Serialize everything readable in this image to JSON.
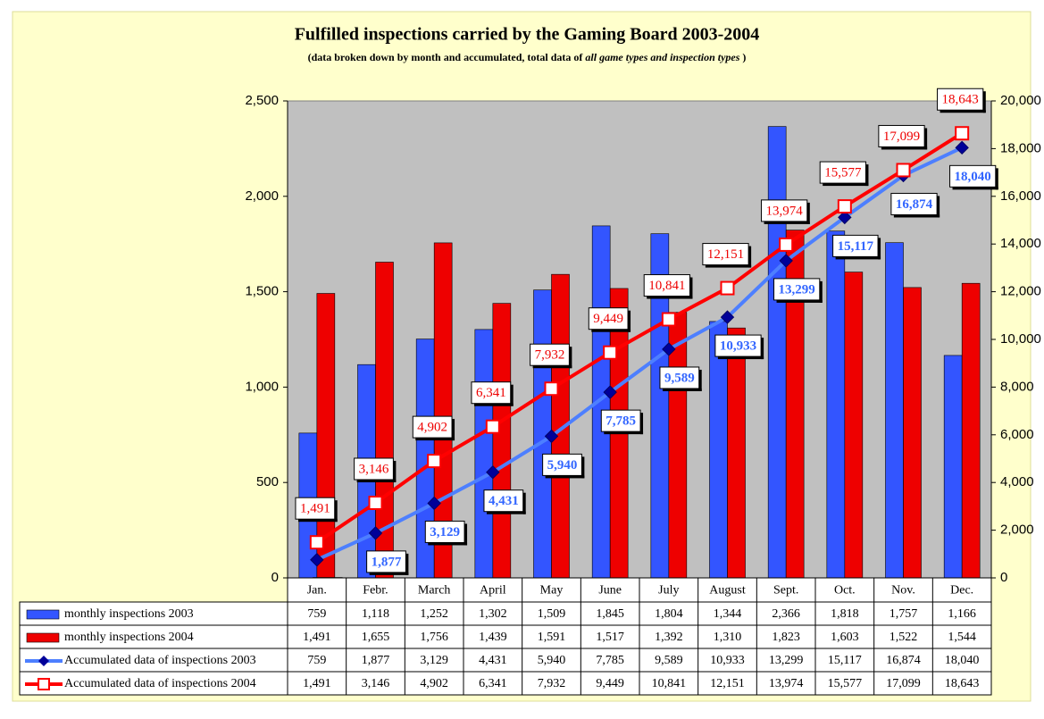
{
  "chart_data": {
    "type": "bar",
    "title": "Fulfilled inspections carried by the Gaming Board 2003-2004",
    "subtitle_parts": [
      "(data broken down by month and accumulated, total data of ",
      "all game types and inspection types",
      " )"
    ],
    "categories": [
      "Jan.",
      "Febr.",
      "March",
      "April",
      "May",
      "June",
      "July",
      "August",
      "Sept.",
      "Oct.",
      "Nov.",
      "Dec."
    ],
    "ylim": [
      0,
      2500
    ],
    "yticks": [
      0,
      500,
      {
        "value": 1000,
        "label": "1,000"
      },
      {
        "value": 1500,
        "label": "1,500"
      },
      {
        "value": 2000,
        "label": "2,000"
      },
      {
        "value": 2500,
        "label": "2,500"
      }
    ],
    "y2lim": [
      0,
      20000
    ],
    "y2ticks": [
      0,
      {
        "value": 2000,
        "label": "2,000"
      },
      {
        "value": 4000,
        "label": "4,000"
      },
      {
        "value": 6000,
        "label": "6,000"
      },
      {
        "value": 8000,
        "label": "8,000"
      },
      {
        "value": 10000,
        "label": "10,000"
      },
      {
        "value": 12000,
        "label": "12,000"
      },
      {
        "value": 14000,
        "label": "14,000"
      },
      {
        "value": 16000,
        "label": "16,000"
      },
      {
        "value": 18000,
        "label": "18,000"
      },
      {
        "value": 20000,
        "label": "20,000"
      }
    ],
    "series": [
      {
        "name": "monthly inspections 2003",
        "type": "bar",
        "color": "#3355ff",
        "values": [
          759,
          1118,
          1252,
          1302,
          1509,
          1845,
          1804,
          1344,
          2366,
          1818,
          1757,
          1166
        ],
        "value_labels": [
          "759",
          "1,118",
          "1,252",
          "1,302",
          "1,509",
          "1,845",
          "1,804",
          "1,344",
          "2,366",
          "1,818",
          "1,757",
          "1,166"
        ]
      },
      {
        "name": "monthly inspections 2004",
        "type": "bar",
        "color": "#ee0000",
        "values": [
          1491,
          1655,
          1756,
          1439,
          1591,
          1517,
          1392,
          1310,
          1823,
          1603,
          1522,
          1544
        ],
        "value_labels": [
          "1,491",
          "1,655",
          "1,756",
          "1,439",
          "1,591",
          "1,517",
          "1,392",
          "1,310",
          "1,823",
          "1,603",
          "1,522",
          "1,544"
        ]
      },
      {
        "name": "Accumulated data of inspections 2003",
        "type": "line",
        "axis": "y2",
        "color": "#4d7fff",
        "values": [
          759,
          1877,
          3129,
          4431,
          5940,
          7785,
          9589,
          10933,
          13299,
          15117,
          16874,
          18040
        ],
        "value_labels": [
          "759",
          "1,877",
          "3,129",
          "4,431",
          "5,940",
          "7,785",
          "9,589",
          "10,933",
          "13,299",
          "15,117",
          "16,874",
          "18,040"
        ]
      },
      {
        "name": "Accumulated data of inspections 2004",
        "type": "line",
        "axis": "y2",
        "color": "#ff0000",
        "values": [
          1491,
          3146,
          4902,
          6341,
          7932,
          9449,
          10841,
          12151,
          13974,
          15577,
          17099,
          18643
        ],
        "value_labels": [
          "1,491",
          "3,146",
          "4,902",
          "6,341",
          "7,932",
          "9,449",
          "10,841",
          "12,151",
          "13,974",
          "15,577",
          "17,099",
          "18,643"
        ]
      }
    ]
  }
}
